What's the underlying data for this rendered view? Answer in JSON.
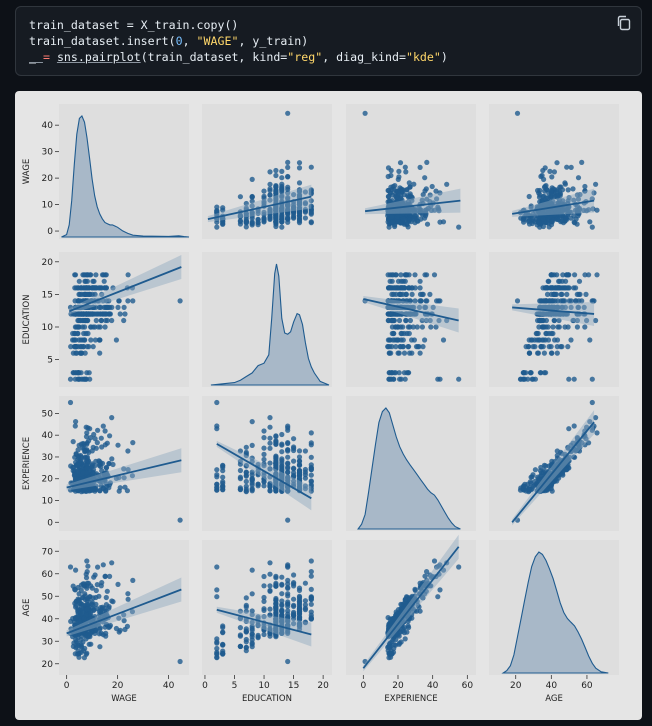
{
  "code": {
    "lines": [
      [
        {
          "t": "train_dataset = X_train.copy()"
        }
      ],
      [
        {
          "t": "train_dataset.insert("
        },
        {
          "t": "0",
          "c": "num"
        },
        {
          "t": ", "
        },
        {
          "t": "\"WAGE\"",
          "c": "str"
        },
        {
          "t": ", y_train)"
        }
      ],
      [
        {
          "t": "_ ",
          "c": "ul"
        },
        {
          "t": "=",
          "c": "op"
        },
        {
          "t": " "
        },
        {
          "t": "sns.pairplot",
          "c": "ul"
        },
        {
          "t": "(train_dataset, kind="
        },
        {
          "t": "\"reg\"",
          "c": "str"
        },
        {
          "t": ", diag_kind="
        },
        {
          "t": "\"kde\"",
          "c": "str"
        },
        {
          "t": ")"
        }
      ]
    ],
    "copy_icon": "copy-icon"
  },
  "chart_data": {
    "type": "pairplot",
    "kind": "reg",
    "diag_kind": "kde",
    "variables": [
      "WAGE",
      "EDUCATION",
      "EXPERIENCE",
      "AGE"
    ],
    "ranges": {
      "WAGE": [
        -3,
        48
      ],
      "EDUCATION": [
        0.8,
        21.5
      ],
      "EXPERIENCE": [
        -4,
        58
      ],
      "AGE": [
        15,
        75
      ]
    },
    "ticks": {
      "WAGE": [
        0,
        10,
        20,
        30,
        40
      ],
      "EDUCATION": [
        5,
        10,
        15,
        20
      ],
      "EXPERIENCE": [
        0,
        10,
        20,
        30,
        40,
        50
      ],
      "AGE": [
        20,
        30,
        40,
        50,
        60,
        70
      ]
    },
    "x_tick_labels": {
      "WAGE": [
        0,
        20,
        40
      ],
      "EDUCATION": [
        0,
        5,
        10,
        15,
        20
      ],
      "EXPERIENCE": [
        0,
        20,
        40,
        60
      ],
      "AGE": [
        20,
        40,
        60
      ]
    },
    "x_axis": {
      "WAGE": [
        -3,
        48
      ],
      "EDUCATION": [
        -0.5,
        21.5
      ],
      "EXPERIENCE": [
        -10,
        65
      ],
      "AGE": [
        5,
        78
      ]
    },
    "regression": {
      "WAGE|EDUCATION": [
        0.5,
        4.5,
        18,
        13
      ],
      "WAGE|EXPERIENCE": [
        1,
        7.5,
        56,
        11.5
      ],
      "WAGE|AGE": [
        18,
        6.5,
        64,
        11.5
      ],
      "EDUCATION|WAGE": [
        1,
        12.4,
        45,
        19.2
      ],
      "EDUCATION|EXPERIENCE": [
        0,
        14.3,
        55,
        11
      ],
      "EDUCATION|AGE": [
        18,
        13,
        64,
        12
      ],
      "EXPERIENCE|WAGE": [
        0,
        16,
        45,
        28.5
      ],
      "EXPERIENCE|EDUCATION": [
        2,
        36,
        18,
        11
      ],
      "EXPERIENCE|AGE": [
        18,
        0,
        64,
        46
      ],
      "AGE|WAGE": [
        0,
        33.5,
        45,
        53
      ],
      "AGE|EDUCATION": [
        2,
        44,
        18,
        33
      ],
      "AGE|EXPERIENCE": [
        0,
        18,
        55,
        72
      ]
    },
    "kde": {
      "WAGE": [
        [
          -2,
          0
        ],
        [
          0,
          0.02
        ],
        [
          1,
          0.1
        ],
        [
          2,
          0.3
        ],
        [
          3,
          0.6
        ],
        [
          4,
          0.85
        ],
        [
          5,
          0.98
        ],
        [
          6,
          1
        ],
        [
          7,
          0.95
        ],
        [
          8,
          0.82
        ],
        [
          9,
          0.65
        ],
        [
          10,
          0.48
        ],
        [
          11,
          0.34
        ],
        [
          12,
          0.25
        ],
        [
          13,
          0.19
        ],
        [
          14,
          0.15
        ],
        [
          15,
          0.12
        ],
        [
          16,
          0.11
        ],
        [
          17,
          0.1
        ],
        [
          18,
          0.1
        ],
        [
          19,
          0.09
        ],
        [
          20,
          0.08
        ],
        [
          22,
          0.05
        ],
        [
          24,
          0.03
        ],
        [
          26,
          0.015
        ],
        [
          30,
          0.008
        ],
        [
          40,
          0.005
        ],
        [
          44,
          0.01
        ],
        [
          46,
          0.004
        ],
        [
          48,
          0
        ]
      ],
      "EDUCATION": [
        [
          1,
          0
        ],
        [
          3,
          0.01
        ],
        [
          5,
          0.02
        ],
        [
          6,
          0.04
        ],
        [
          7,
          0.07
        ],
        [
          8,
          0.1
        ],
        [
          9,
          0.16
        ],
        [
          10,
          0.18
        ],
        [
          10.8,
          0.25
        ],
        [
          11.3,
          0.55
        ],
        [
          11.8,
          0.92
        ],
        [
          12.1,
          1
        ],
        [
          12.5,
          0.9
        ],
        [
          13,
          0.55
        ],
        [
          13.5,
          0.43
        ],
        [
          14,
          0.42
        ],
        [
          14.5,
          0.44
        ],
        [
          15,
          0.52
        ],
        [
          15.6,
          0.59
        ],
        [
          16,
          0.58
        ],
        [
          16.5,
          0.5
        ],
        [
          17,
          0.35
        ],
        [
          17.5,
          0.22
        ],
        [
          18,
          0.15
        ],
        [
          18.5,
          0.1
        ],
        [
          19.5,
          0.03
        ],
        [
          21,
          0
        ]
      ],
      "EXPERIENCE": [
        [
          -3,
          0
        ],
        [
          -1,
          0.04
        ],
        [
          1,
          0.12
        ],
        [
          3,
          0.3
        ],
        [
          5,
          0.5
        ],
        [
          7,
          0.7
        ],
        [
          9,
          0.88
        ],
        [
          11,
          0.97
        ],
        [
          13,
          1
        ],
        [
          15,
          0.96
        ],
        [
          17,
          0.86
        ],
        [
          19,
          0.76
        ],
        [
          21,
          0.68
        ],
        [
          23,
          0.62
        ],
        [
          25,
          0.57
        ],
        [
          27,
          0.53
        ],
        [
          29,
          0.49
        ],
        [
          31,
          0.45
        ],
        [
          33,
          0.41
        ],
        [
          35,
          0.37
        ],
        [
          37,
          0.33
        ],
        [
          39,
          0.3
        ],
        [
          41,
          0.28
        ],
        [
          43,
          0.24
        ],
        [
          45,
          0.19
        ],
        [
          47,
          0.14
        ],
        [
          49,
          0.09
        ],
        [
          51,
          0.05
        ],
        [
          53,
          0.02
        ],
        [
          56,
          0
        ]
      ],
      "AGE": [
        [
          13,
          0
        ],
        [
          15,
          0.02
        ],
        [
          17,
          0.06
        ],
        [
          19,
          0.15
        ],
        [
          21,
          0.3
        ],
        [
          23,
          0.45
        ],
        [
          25,
          0.6
        ],
        [
          27,
          0.75
        ],
        [
          29,
          0.88
        ],
        [
          31,
          0.96
        ],
        [
          33,
          1
        ],
        [
          35,
          0.98
        ],
        [
          37,
          0.93
        ],
        [
          39,
          0.86
        ],
        [
          41,
          0.78
        ],
        [
          43,
          0.68
        ],
        [
          45,
          0.58
        ],
        [
          47,
          0.5
        ],
        [
          49,
          0.45
        ],
        [
          51,
          0.42
        ],
        [
          53,
          0.39
        ],
        [
          55,
          0.34
        ],
        [
          57,
          0.28
        ],
        [
          59,
          0.21
        ],
        [
          61,
          0.14
        ],
        [
          63,
          0.08
        ],
        [
          65,
          0.04
        ],
        [
          68,
          0.01
        ],
        [
          72,
          0
        ]
      ]
    }
  }
}
